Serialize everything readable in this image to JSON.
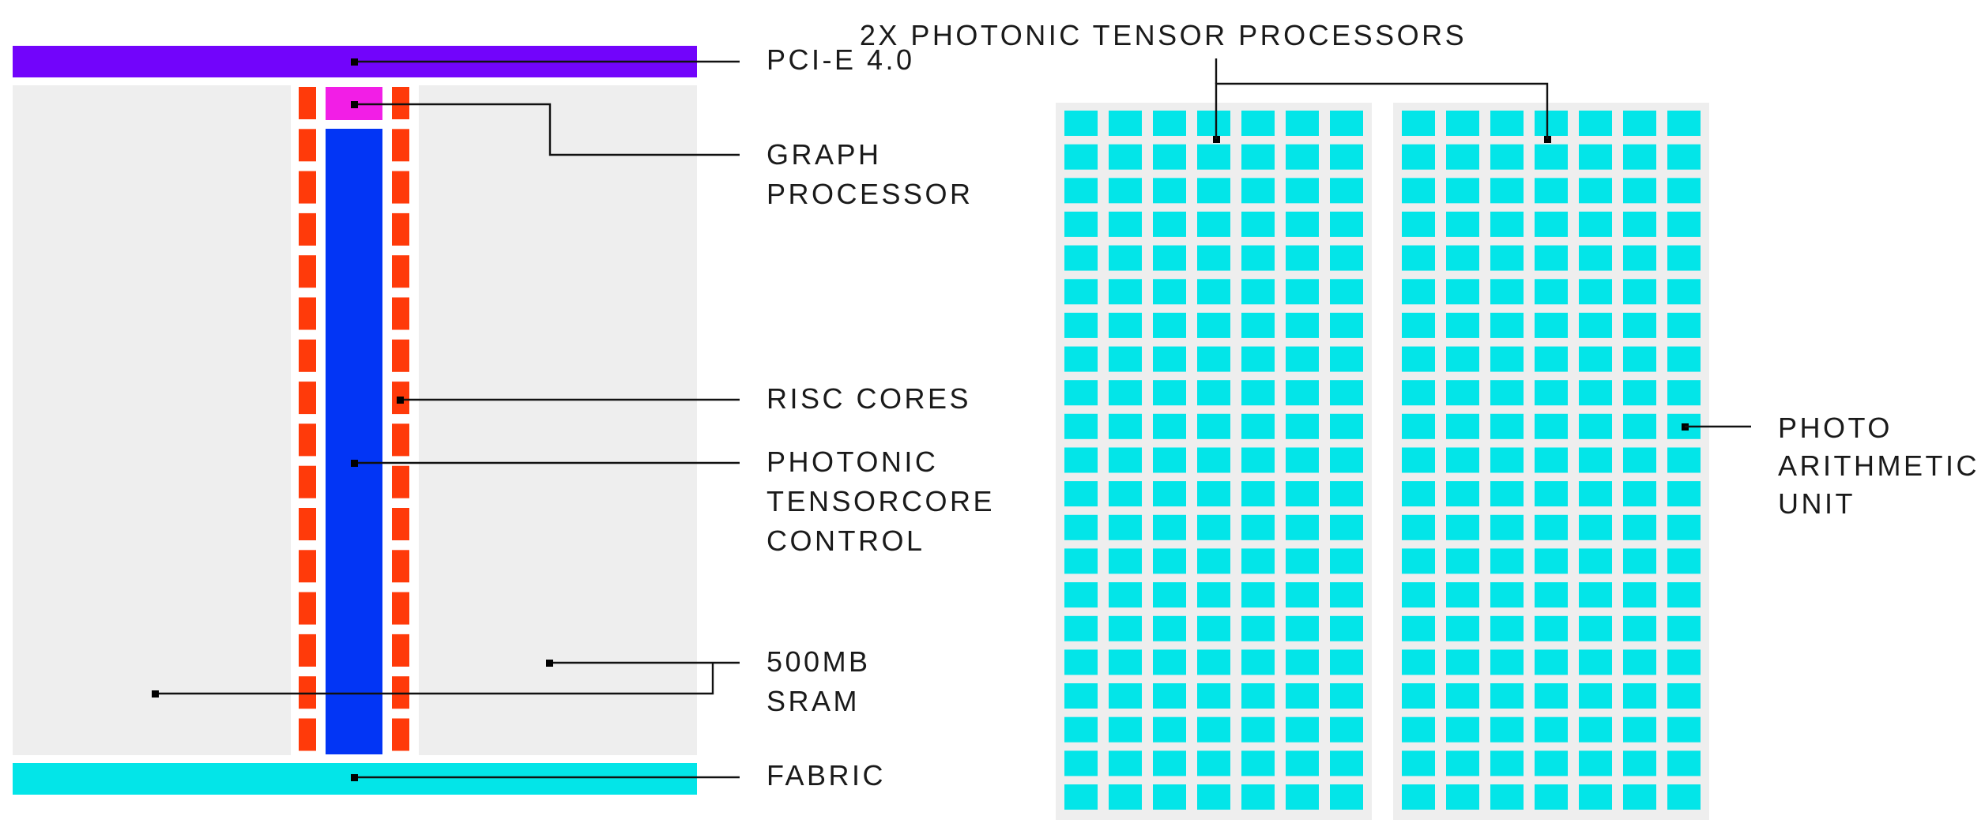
{
  "colors": {
    "pcie": "#7204fb",
    "graph_processor": "#f21ee6",
    "risc_cores": "#ff3a0a",
    "tensorcore_control": "#0235f5",
    "fabric": "#03e5e8",
    "sram": "#eeeeee",
    "photo_arithmetic_unit": "#03e5e8",
    "processor_panel": "#eeeeee",
    "leader_line": "#111111"
  },
  "icons": {
    "leader_marker": "small-black-square"
  },
  "labels": {
    "pcie": "PCI-E 4.0",
    "graph_processor": [
      "GRAPH",
      "PROCESSOR"
    ],
    "risc_cores": "RISC CORES",
    "tensorcore_control": [
      "PHOTONIC",
      "TENSORCORE",
      "CONTROL"
    ],
    "sram": [
      "500MB",
      "SRAM"
    ],
    "fabric": "FABRIC",
    "tensor_processors": "2X PHOTONIC TENSOR PROCESSORS",
    "photo_arithmetic_unit": [
      "PHOTO",
      "ARITHMETIC",
      "UNIT"
    ]
  },
  "tensor_processors": {
    "count": 2,
    "grid_columns": 7,
    "grid_rows": 21
  }
}
